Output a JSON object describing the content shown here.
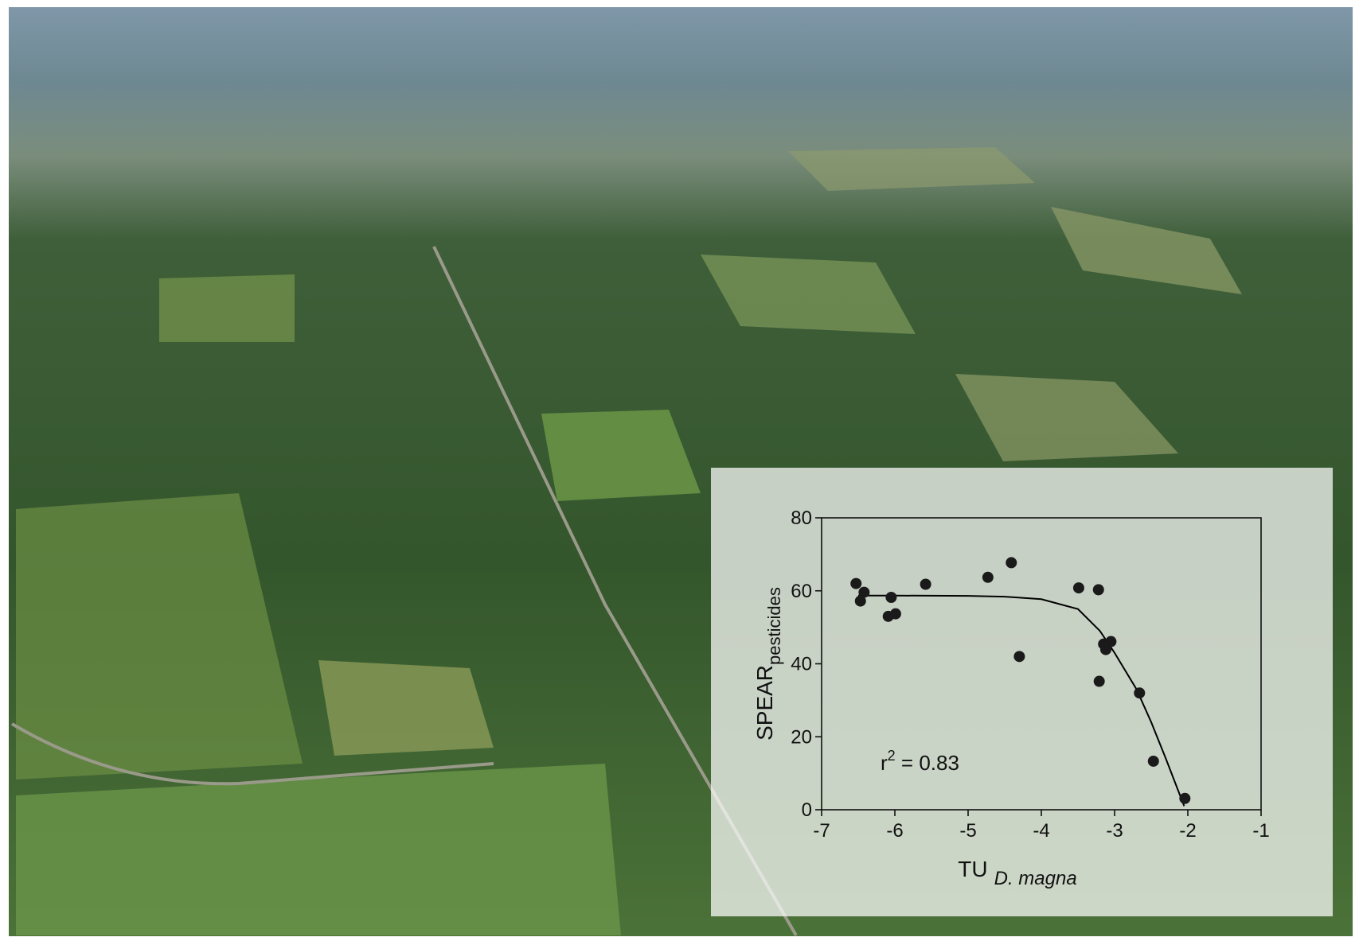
{
  "chart_data": {
    "type": "scatter",
    "x": [
      -6.53,
      -6.42,
      -6.47,
      -6.05,
      -6.09,
      -5.99,
      -5.58,
      -4.73,
      -4.41,
      -4.3,
      -3.49,
      -3.22,
      -3.15,
      -3.05,
      -3.12,
      -3.21,
      -2.66,
      -2.47,
      -2.04
    ],
    "values": [
      62,
      59.6,
      57.2,
      58.2,
      53,
      53.7,
      61.8,
      63.7,
      67.7,
      42,
      60.8,
      60.3,
      45.4,
      46.1,
      43.9,
      35.2,
      32,
      13.3,
      3.1
    ],
    "color": "#1a1a1a",
    "fit": {
      "x": [
        -6.5,
        -6,
        -5,
        -4.5,
        -4,
        -3.5,
        -3.2,
        -3,
        -2.7,
        -2.5,
        -2.3,
        -2.05
      ],
      "values": [
        58.7,
        58.7,
        58.6,
        58.4,
        57.7,
        55,
        49,
        43,
        33,
        24,
        14,
        1
      ],
      "color": "#000000"
    },
    "xlim": [
      -7,
      -1
    ],
    "xticks": [
      -7,
      -6,
      -5,
      -4,
      -3,
      -2,
      -1
    ],
    "ylim": [
      0,
      80
    ],
    "yticks": [
      0,
      20,
      40,
      60,
      80
    ],
    "x_label": {
      "main": "TU",
      "sub": "D. magna"
    },
    "y_label": {
      "main": "SPEAR",
      "sub": "pesticides"
    },
    "annotation": {
      "base": "r",
      "sup": "2",
      "rest": " = 0.83"
    }
  }
}
